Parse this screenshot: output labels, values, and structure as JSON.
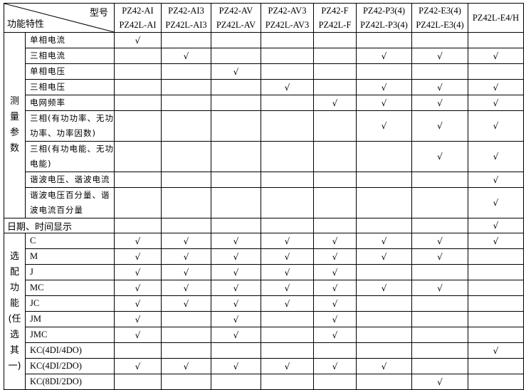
{
  "header": {
    "model_label": "型号",
    "feature_label": "功能特性",
    "models": [
      [
        "PZ42-AI",
        "PZ42L-AI"
      ],
      [
        "PZ42-AI3",
        "PZ42L-AI3"
      ],
      [
        "PZ42-AV",
        "PZ42L-AV"
      ],
      [
        "PZ42-AV3",
        "PZ42L-AV3"
      ],
      [
        "PZ42-F",
        "PZ42L-F"
      ],
      [
        "PZ42-P3(4)",
        "PZ42L-P3(4)"
      ],
      [
        "PZ42-E3(4)",
        "PZ42L-E3(4)"
      ],
      [
        "PZ42L-E4/H"
      ]
    ]
  },
  "check_mark": "√",
  "groups": [
    {
      "label_lines": [
        "测",
        "量",
        "参",
        "数"
      ],
      "rows": [
        {
          "label": "单相电流",
          "checks": [
            1,
            0,
            0,
            0,
            0,
            0,
            0,
            0
          ]
        },
        {
          "label": "三相电流",
          "checks": [
            0,
            1,
            0,
            0,
            0,
            1,
            1,
            1
          ]
        },
        {
          "label": "单相电压",
          "checks": [
            0,
            0,
            1,
            0,
            0,
            0,
            0,
            0
          ]
        },
        {
          "label": "三相电压",
          "checks": [
            0,
            0,
            0,
            1,
            0,
            1,
            1,
            1
          ]
        },
        {
          "label": "电网频率",
          "checks": [
            0,
            0,
            0,
            0,
            1,
            1,
            1,
            1
          ]
        },
        {
          "label": "三相(有功功率、无功功率、功率因数)",
          "checks": [
            0,
            0,
            0,
            0,
            0,
            1,
            1,
            1
          ],
          "tall": true
        },
        {
          "label": "三相(有功电能、无功电能)",
          "checks": [
            0,
            0,
            0,
            0,
            0,
            0,
            1,
            1
          ],
          "tall": true
        },
        {
          "label": "谐波电压、谐波电流",
          "checks": [
            0,
            0,
            0,
            0,
            0,
            0,
            0,
            1
          ]
        },
        {
          "label": "谐波电压百分量、谐波电流百分量",
          "checks": [
            0,
            0,
            0,
            0,
            0,
            0,
            0,
            1
          ],
          "tall": true
        }
      ]
    },
    {
      "merged_row": {
        "label": "日期、时间显示",
        "checks": [
          0,
          0,
          0,
          0,
          0,
          0,
          0,
          1
        ]
      }
    },
    {
      "label_lines": [
        "选",
        "配",
        "功",
        "能",
        "(任",
        "选",
        "其",
        "一)"
      ],
      "rows": [
        {
          "label": "C",
          "checks": [
            1,
            1,
            1,
            1,
            1,
            1,
            1,
            1
          ]
        },
        {
          "label": "M",
          "checks": [
            1,
            1,
            1,
            1,
            1,
            1,
            1,
            0
          ]
        },
        {
          "label": "J",
          "checks": [
            1,
            1,
            1,
            1,
            1,
            0,
            0,
            0
          ]
        },
        {
          "label": "MC",
          "checks": [
            1,
            1,
            1,
            1,
            1,
            1,
            1,
            0
          ]
        },
        {
          "label": "JC",
          "checks": [
            1,
            1,
            1,
            1,
            1,
            0,
            0,
            0
          ]
        },
        {
          "label": "JM",
          "checks": [
            1,
            0,
            1,
            0,
            1,
            0,
            0,
            0
          ]
        },
        {
          "label": "JMC",
          "checks": [
            1,
            0,
            1,
            0,
            1,
            0,
            0,
            0
          ]
        },
        {
          "label": "KC(4DI/4DO)",
          "checks": [
            0,
            0,
            0,
            0,
            0,
            0,
            0,
            1
          ]
        },
        {
          "label": "KC(4DI/2DO)",
          "checks": [
            1,
            1,
            1,
            1,
            1,
            1,
            0,
            0
          ]
        },
        {
          "label": "KC(8DI/2DO)",
          "checks": [
            0,
            0,
            0,
            0,
            0,
            0,
            1,
            0
          ]
        }
      ]
    }
  ]
}
